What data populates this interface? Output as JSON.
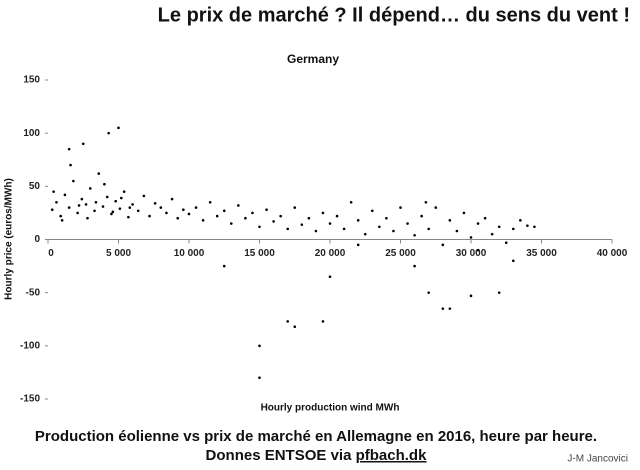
{
  "slide": {
    "headline": "Le prix de marché ? Il dépend… du sens du vent !",
    "caption_line1": "Production éolienne vs prix de marché en Allemagne en 2016, heure par heure.",
    "caption_line2": "Donnes ENTSOE via",
    "caption_link": "pfbach.dk",
    "author": "J-M Jancovici"
  },
  "chart_data": {
    "type": "scatter",
    "title": "Germany",
    "x_label": "Hourly production wind MWh",
    "y_label": "Hourly price (euros/MWh)",
    "color": "#000000",
    "xlim": [
      0,
      40000
    ],
    "ylim": [
      -150,
      150
    ],
    "xticks": [
      0,
      {
        "value": 5000,
        "label": "5 000"
      },
      {
        "value": 10000,
        "label": "10 000"
      },
      {
        "value": 15000,
        "label": "15 000"
      },
      {
        "value": 20000,
        "label": "20 000"
      },
      {
        "value": 25000,
        "label": "25 000"
      },
      {
        "value": 30000,
        "label": "30 000"
      },
      {
        "value": 35000,
        "label": "35 000"
      },
      {
        "value": 40000,
        "label": "40 000"
      }
    ],
    "yticks": [
      -150,
      -100,
      -50,
      0,
      50,
      100,
      150
    ],
    "x": [
      300,
      600,
      900,
      1200,
      1500,
      1800,
      2100,
      2400,
      2700,
      3000,
      3300,
      3600,
      3900,
      4200,
      4500,
      4800,
      5100,
      5400,
      5700,
      6000,
      400,
      1000,
      1600,
      2200,
      2800,
      3400,
      4000,
      4600,
      5200,
      5800,
      6400,
      6800,
      7200,
      7600,
      8000,
      8400,
      8800,
      9200,
      9600,
      10000,
      10500,
      11000,
      11500,
      12000,
      12500,
      13000,
      13500,
      14000,
      14500,
      15000,
      15500,
      16000,
      16500,
      17000,
      17500,
      18000,
      18500,
      19000,
      19500,
      20000,
      20500,
      21000,
      21500,
      22000,
      22500,
      23000,
      23500,
      24000,
      24500,
      25000,
      25500,
      26000,
      26500,
      27000,
      27500,
      28000,
      28500,
      29000,
      29500,
      30000,
      30500,
      31000,
      31500,
      32000,
      32500,
      33000,
      33500,
      34000,
      34500,
      26800,
      5000,
      4300,
      1500,
      2500,
      12500,
      15000,
      15000,
      17000,
      17500,
      19500,
      20000,
      27000,
      28000,
      28500,
      30000,
      32000,
      33000,
      30500,
      26000,
      22000
    ],
    "values": [
      28,
      35,
      22,
      42,
      30,
      55,
      25,
      38,
      33,
      48,
      27,
      62,
      31,
      40,
      24,
      36,
      29,
      45,
      21,
      33,
      45,
      18,
      70,
      32,
      20,
      35,
      52,
      26,
      39,
      30,
      27,
      41,
      22,
      34,
      30,
      25,
      38,
      20,
      28,
      24,
      30,
      18,
      35,
      22,
      27,
      15,
      32,
      20,
      25,
      12,
      28,
      17,
      22,
      10,
      30,
      14,
      20,
      8,
      25,
      15,
      22,
      10,
      35,
      18,
      5,
      27,
      12,
      20,
      8,
      30,
      15,
      4,
      22,
      10,
      30,
      -5,
      18,
      8,
      25,
      2,
      15,
      20,
      5,
      12,
      -3,
      10,
      18,
      13,
      12,
      35,
      105,
      100,
      85,
      90,
      -25,
      -100,
      -130,
      -77,
      -82,
      -77,
      -35,
      -50,
      -65,
      -65,
      -53,
      -50,
      -20,
      -10,
      -25,
      -5
    ]
  }
}
